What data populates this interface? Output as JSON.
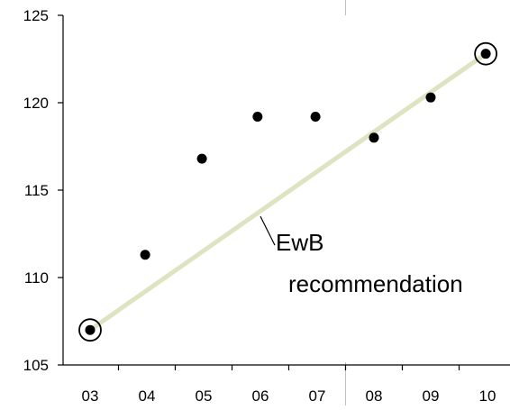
{
  "chart_data": {
    "type": "scatter",
    "title": "",
    "xlabel": "",
    "ylabel": "",
    "categories": [
      "03",
      "04",
      "05",
      "06",
      "07",
      "08",
      "09",
      "10"
    ],
    "ylim": [
      105,
      125
    ],
    "yticks": [
      105,
      110,
      115,
      120,
      125
    ],
    "grid": false,
    "legend": "none",
    "series": [
      {
        "x": [
          3.0,
          3.97,
          4.97,
          5.95,
          6.97,
          8.0,
          9.0,
          9.97
        ],
        "y": [
          107.0,
          111.3,
          116.8,
          119.2,
          119.2,
          118.0,
          120.3,
          122.8
        ],
        "circled_indices": [
          0,
          7
        ]
      }
    ],
    "trend_line": {
      "from": [
        3.0,
        107.0
      ],
      "to": [
        9.97,
        122.8
      ]
    },
    "annotation": {
      "line1": "EwB",
      "line2": "recommendation",
      "point": [
        6.0,
        113.5
      ]
    },
    "colors": {
      "trend_line": "#dde4c2",
      "points": "#000000",
      "axis": "#000000",
      "gridline": "#c0c0c0"
    }
  }
}
